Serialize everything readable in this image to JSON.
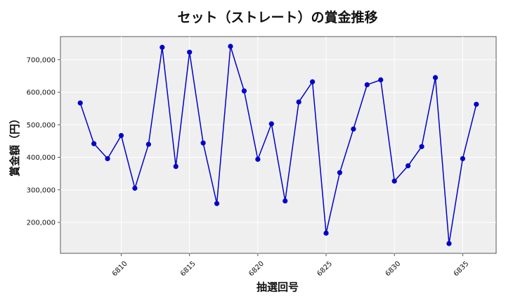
{
  "chart_data": {
    "type": "line",
    "title": "セット（ストレート）の賞金推移",
    "xlabel": "抽選回号",
    "ylabel": "賞金額（円）",
    "x": [
      6807,
      6808,
      6809,
      6810,
      6811,
      6812,
      6813,
      6814,
      6815,
      6816,
      6817,
      6818,
      6819,
      6820,
      6821,
      6822,
      6823,
      6824,
      6825,
      6826,
      6827,
      6828,
      6829,
      6830,
      6831,
      6832,
      6833,
      6834,
      6835,
      6836
    ],
    "series": [
      {
        "values": [
          567000,
          442000,
          396000,
          467000,
          305000,
          440000,
          738000,
          372000,
          723000,
          444000,
          258000,
          741000,
          604000,
          394000,
          503000,
          266000,
          570000,
          632000,
          167000,
          353000,
          487000,
          623000,
          638000,
          327000,
          374000,
          433000,
          645000,
          135000,
          396000,
          563000
        ]
      }
    ],
    "xticks": [
      6810,
      6815,
      6820,
      6825,
      6830,
      6835
    ],
    "yticks": [
      200000,
      300000,
      400000,
      500000,
      600000,
      700000
    ],
    "ytick_labels": [
      "200,000",
      "300,000",
      "400,000",
      "500,000",
      "600,000",
      "700,000"
    ],
    "xlim": [
      6805.55,
      6837.45
    ],
    "ylim": [
      105000,
      771000
    ],
    "grid": true,
    "line_color": "#0000cc",
    "marker_color": "#0000cc",
    "plot_background": "#efefef"
  }
}
